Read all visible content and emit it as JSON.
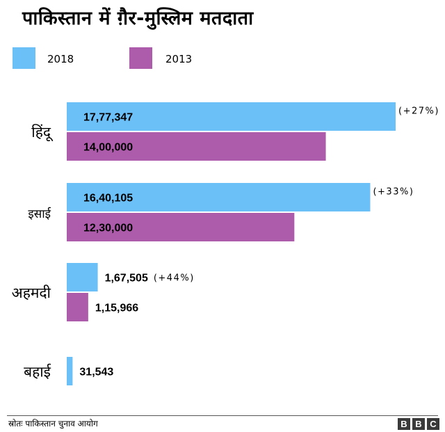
{
  "title": "पाकिस्तान में ग़ैर-मुस्लिम मतदाता",
  "source": "स्रोतः पाकिस्तान चुनाव आयोग",
  "logo": {
    "letters": [
      "B",
      "B",
      "C"
    ]
  },
  "colors": {
    "series_2018": "#6cc0f8",
    "series_2013": "#ad5bab"
  },
  "chart_data": {
    "type": "bar",
    "orientation": "horizontal",
    "categories": [
      "हिंदू",
      "इसाई",
      "अहमदी",
      "बहाई"
    ],
    "series": [
      {
        "name": "2018",
        "values": [
          1777347,
          1640105,
          167505,
          31543
        ],
        "labels": [
          "17,77,347",
          "16,40,105",
          "1,67,505",
          "31,543"
        ],
        "changes": [
          "(+27%)",
          "(+33%)",
          "(+44%)",
          ""
        ]
      },
      {
        "name": "2013",
        "values": [
          1400000,
          1230000,
          115966,
          null
        ],
        "labels": [
          "14,00,000",
          "12,30,000",
          "1,15,966",
          ""
        ]
      }
    ],
    "legend": "top-left",
    "grid": false
  }
}
